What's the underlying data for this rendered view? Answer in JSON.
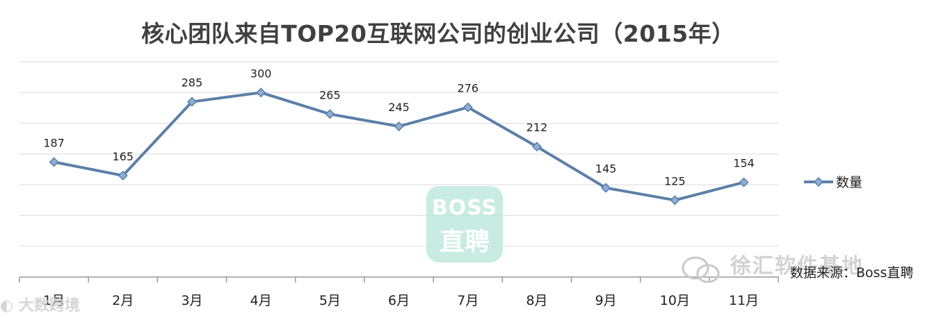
{
  "chart_data": {
    "type": "line",
    "title": "核心团队来自TOP20互联网公司的创业公司（2015年）",
    "categories": [
      "1月",
      "2月",
      "3月",
      "4月",
      "5月",
      "6月",
      "7月",
      "8月",
      "9月",
      "10月",
      "11月"
    ],
    "series": [
      {
        "name": "数量",
        "values": [
          187,
          165,
          285,
          300,
          265,
          245,
          276,
          212,
          145,
          125,
          154
        ]
      }
    ],
    "ylim": [
      0,
      350
    ],
    "grid": true,
    "legend": "right",
    "line_color": "#5b7fa8",
    "marker_color": "#8eaed6"
  },
  "source_note": "数据来源：Boss直聘",
  "watermark_boss": {
    "line1": "BOSS",
    "line2": "直聘"
  },
  "watermark_wechat": "徐汇软件基地",
  "watermark_corner": "大数跨境"
}
